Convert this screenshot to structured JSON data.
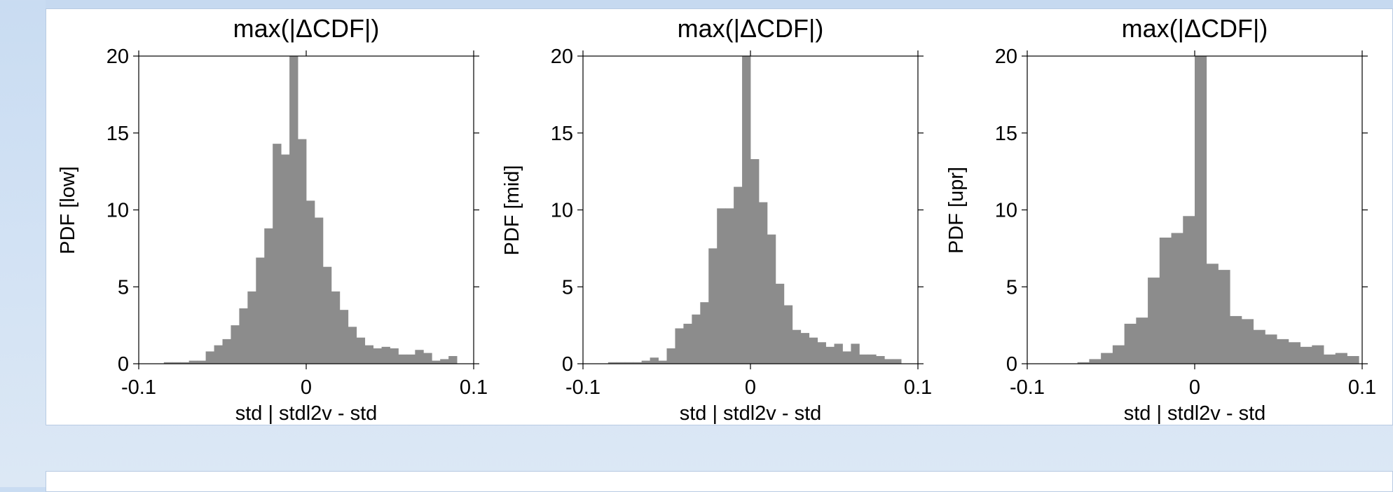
{
  "chart_data": [
    {
      "type": "bar",
      "title": "max(|ΔCDF|)",
      "xlabel": "std | stdl2v - std",
      "ylabel": "PDF [low]",
      "xlim": [
        -0.1,
        0.1
      ],
      "ylim": [
        0,
        20
      ],
      "xticks": [
        "-0.1",
        "0",
        "0.1"
      ],
      "yticks": [
        "0",
        "5",
        "10",
        "15",
        "20"
      ],
      "bar_color": "#8c8c8c",
      "bin_start": -0.085,
      "bin_width": 0.005,
      "values": [
        0.1,
        0.1,
        0.1,
        0.2,
        0.2,
        0.8,
        1.2,
        1.6,
        2.5,
        3.6,
        4.7,
        6.9,
        8.8,
        14.3,
        13.6,
        20,
        14.6,
        10.6,
        9.5,
        6.3,
        4.7,
        3.5,
        2.4,
        1.7,
        1.2,
        1.0,
        1.1,
        1.0,
        0.6,
        0.6,
        0.9,
        0.7,
        0.2,
        0.3,
        0.5
      ],
      "grid": false
    },
    {
      "type": "bar",
      "title": "max(|ΔCDF|)",
      "xlabel": "std | stdl2v - std",
      "ylabel": "PDF [mid]",
      "xlim": [
        -0.1,
        0.1
      ],
      "ylim": [
        0,
        20
      ],
      "xticks": [
        "-0.1",
        "0",
        "0.1"
      ],
      "yticks": [
        "0",
        "5",
        "10",
        "15",
        "20"
      ],
      "bar_color": "#8c8c8c",
      "bin_start": -0.085,
      "bin_width": 0.005,
      "values": [
        0.1,
        0.1,
        0.1,
        0.1,
        0.2,
        0.4,
        0.2,
        1.0,
        2.3,
        2.6,
        3.2,
        4.0,
        7.5,
        10.1,
        10.1,
        11.5,
        20,
        13.3,
        10.5,
        8.4,
        5.2,
        3.8,
        2.2,
        2.0,
        1.7,
        1.4,
        1.1,
        1.3,
        0.8,
        1.3,
        0.6,
        0.6,
        0.5,
        0.3,
        0.3
      ],
      "grid": false
    },
    {
      "type": "bar",
      "title": "max(|ΔCDF|)",
      "xlabel": "std | stdl2v - std",
      "ylabel": "PDF [upr]",
      "xlim": [
        -0.1,
        0.1
      ],
      "ylim": [
        0,
        20
      ],
      "xticks": [
        "-0.1",
        "0",
        "0.1"
      ],
      "yticks": [
        "0",
        "5",
        "10",
        "15",
        "20"
      ],
      "bar_color": "#8c8c8c",
      "bin_start": -0.07,
      "bin_width": 0.007,
      "values": [
        0.1,
        0.3,
        0.7,
        1.2,
        2.6,
        3.0,
        5.6,
        8.2,
        8.5,
        9.6,
        20,
        6.5,
        6.1,
        3.1,
        2.9,
        2.2,
        1.9,
        1.6,
        1.4,
        1.1,
        1.2,
        0.6,
        0.7,
        0.5
      ]
    }
  ]
}
